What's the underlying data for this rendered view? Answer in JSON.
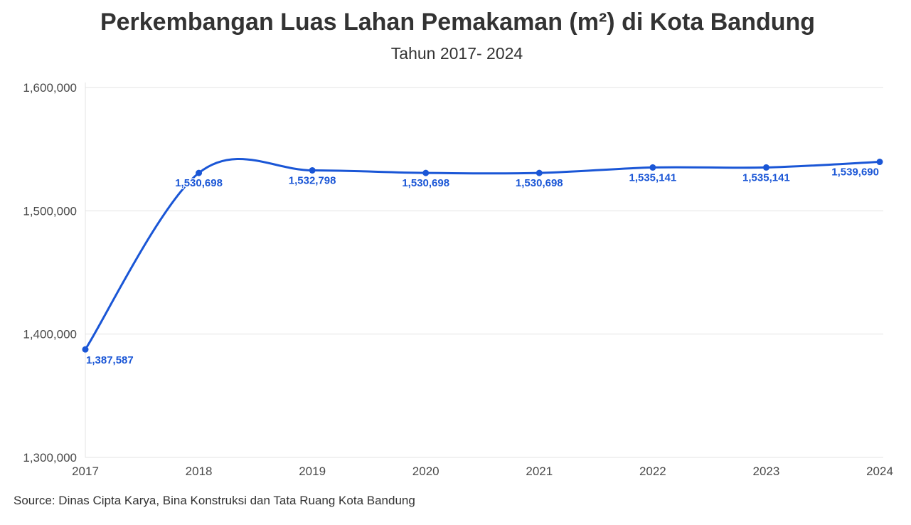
{
  "chart_data": {
    "type": "line",
    "title": "Perkembangan Luas Lahan Pemakaman (m²) di Kota Bandung",
    "subtitle": "Tahun 2017- 2024",
    "x": [
      "2017",
      "2018",
      "2019",
      "2020",
      "2021",
      "2022",
      "2023",
      "2024"
    ],
    "series": [
      {
        "values": [
          1387587,
          1530698,
          1532798,
          1530698,
          1530698,
          1535141,
          1535141,
          1539690
        ],
        "labels": [
          "1,387,587",
          "1,530,698",
          "1,532,798",
          "1,530,698",
          "1,530,698",
          "1,535,141",
          "1,535,141",
          "1,539,690"
        ],
        "color": "#1a56d6"
      }
    ],
    "yticks": [
      1300000,
      1400000,
      1500000,
      1600000
    ],
    "ytick_labels": [
      "1,300,000",
      "1,400,000",
      "1,500,000",
      "1,600,000"
    ],
    "ylim": [
      1300000,
      1600000
    ],
    "grid": true,
    "source": "Source: Dinas Cipta Karya, Bina Konstruksi dan Tata Ruang Kota Bandung"
  }
}
